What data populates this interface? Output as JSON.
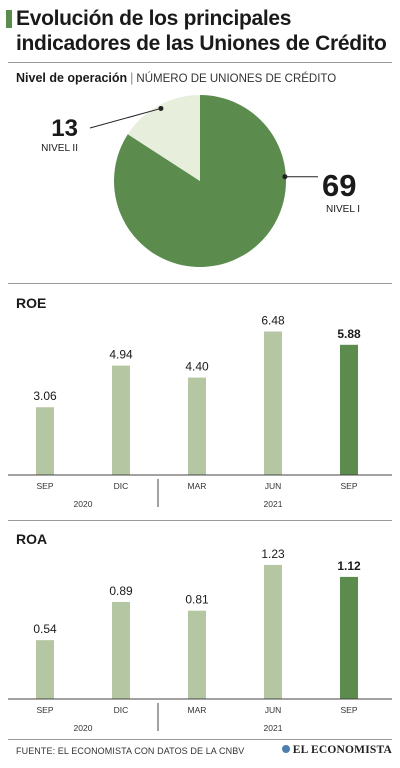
{
  "title_line1": "Evolución de los principales",
  "title_line2": "indicadores de las Uniones de Crédito",
  "pie_section": {
    "label_strong": "Nivel de operación",
    "separator": "|",
    "label_light": "NÚMERO DE UNIONES DE CRÉDITO"
  },
  "colors": {
    "dark_green": "#5b8c4e",
    "light_green": "#b5c7a2",
    "pale_green": "#e7eedc",
    "brand_blue": "#4a7fb0"
  },
  "chart_data": [
    {
      "type": "pie",
      "slices": [
        {
          "label": "NIVEL I",
          "value": 69
        },
        {
          "label": "NIVEL II",
          "value": 13
        }
      ]
    },
    {
      "type": "bar",
      "title": "ROE",
      "categories": [
        "SEP",
        "DIC",
        "MAR",
        "JUN",
        "SEP"
      ],
      "groups": [
        {
          "label": "2020",
          "categories": [
            "SEP",
            "DIC"
          ]
        },
        {
          "label": "2021",
          "categories": [
            "MAR",
            "JUN",
            "SEP"
          ]
        }
      ],
      "values": [
        3.06,
        4.94,
        4.4,
        6.48,
        5.88
      ],
      "value_labels": [
        "3.06",
        "4.94",
        "4.40",
        "6.48",
        "5.88"
      ],
      "highlight_index": 4,
      "ylim": [
        0,
        7.0
      ]
    },
    {
      "type": "bar",
      "title": "ROA",
      "categories": [
        "SEP",
        "DIC",
        "MAR",
        "JUN",
        "SEP"
      ],
      "groups": [
        {
          "label": "2020",
          "categories": [
            "SEP",
            "DIC"
          ]
        },
        {
          "label": "2021",
          "categories": [
            "MAR",
            "JUN",
            "SEP"
          ]
        }
      ],
      "values": [
        0.54,
        0.89,
        0.81,
        1.23,
        1.12
      ],
      "value_labels": [
        "0.54",
        "0.89",
        "0.81",
        "1.23",
        "1.12"
      ],
      "highlight_index": 4,
      "ylim": [
        0,
        1.33
      ]
    }
  ],
  "footer": "FUENTE: EL ECONOMISTA CON DATOS DE LA CNBV",
  "brand": "EL ECONOMISTA"
}
